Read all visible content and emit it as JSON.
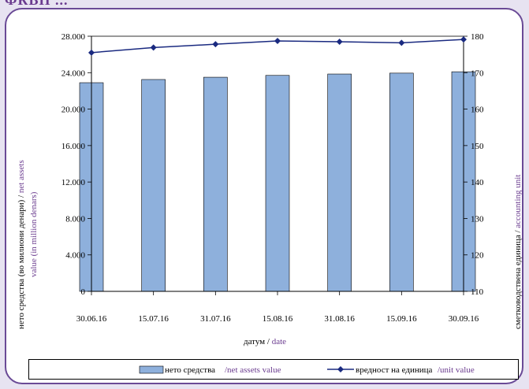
{
  "header": {
    "text": "ФКВП ..."
  },
  "chart_data": {
    "type": "bar+line",
    "categories": [
      "30.06.16",
      "15.07.16",
      "31.07.16",
      "15.08.16",
      "31.08.16",
      "15.09.16",
      "30.09.16"
    ],
    "series": [
      {
        "name_mk": "нето средства",
        "name_en": "/net assets value",
        "axis": "left",
        "type": "bar",
        "values": [
          22900,
          23250,
          23500,
          23700,
          23850,
          23950,
          24100
        ]
      },
      {
        "name_mk": "вредност на единица",
        "name_en": "/unit value",
        "axis": "right",
        "type": "line",
        "values": [
          175.5,
          176.9,
          177.8,
          178.7,
          178.5,
          178.2,
          179.1
        ]
      }
    ],
    "y_left": {
      "min": 0,
      "max": 28000,
      "ticks": [
        "0",
        "4.000",
        "8.000",
        "12.000",
        "16.000",
        "20.000",
        "24.000",
        "28.000"
      ],
      "label_mk": "нето средства (во милиони денари) /",
      "label_en_1": "net assets",
      "label_en_2": "value (in million denars)"
    },
    "y_right": {
      "min": 110,
      "max": 180,
      "ticks": [
        "110",
        "120",
        "130",
        "140",
        "150",
        "160",
        "170",
        "180"
      ],
      "label_mk": "сметководствена единица /",
      "label_en": "accounting unit"
    },
    "x_label_mk": "датум /",
    "x_label_en": "date",
    "colors": {
      "bar": "#8eb0dc",
      "line": "#1a2a80",
      "accent": "#6a3b8f",
      "frame": "#6a4a96"
    }
  }
}
